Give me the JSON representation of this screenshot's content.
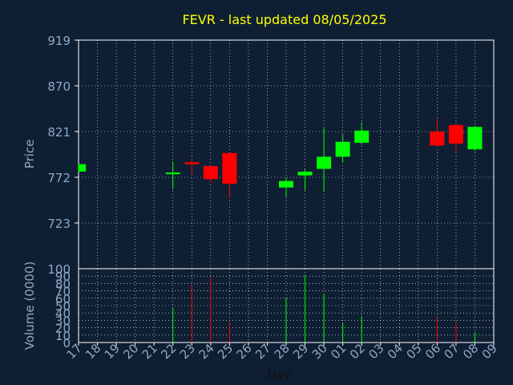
{
  "chart_data": {
    "type": "candlestick",
    "title": "FEVR - last updated 08/05/2025",
    "xlabel": "Day",
    "price_label": "Price",
    "volume_label": "Volume (0000)",
    "x_tick_labels": [
      "17",
      "18",
      "19",
      "20",
      "21",
      "22",
      "23",
      "24",
      "25",
      "26",
      "27",
      "28",
      "29",
      "30",
      "01",
      "02",
      "03",
      "04",
      "05",
      "06",
      "07",
      "08",
      "09"
    ],
    "price_ticks": [
      723,
      772,
      821,
      870,
      919
    ],
    "price_ylim": [
      674,
      919
    ],
    "volume_ticks": [
      0,
      10,
      20,
      30,
      40,
      50,
      60,
      70,
      80,
      90,
      100
    ],
    "volume_ylim": [
      0,
      100
    ],
    "grid": true,
    "colors": {
      "background": "#0f1f33",
      "title": "#ffff00",
      "axis_text": "#8fa8c8",
      "grid": "#ffffff",
      "up": "#00ff00",
      "down": "#ff0000"
    },
    "candles": [
      {
        "day": "17",
        "open": 778,
        "high": 786,
        "low": 778,
        "close": 786,
        "volume": 0
      },
      {
        "day": "22",
        "open": 776,
        "high": 789,
        "low": 759,
        "close": 777,
        "volume": 48
      },
      {
        "day": "23",
        "open": 788,
        "high": 792,
        "low": 776,
        "close": 786,
        "volume": 78
      },
      {
        "day": "24",
        "open": 784,
        "high": 784,
        "low": 766,
        "close": 770,
        "volume": 88
      },
      {
        "day": "25",
        "open": 798,
        "high": 798,
        "low": 749,
        "close": 765,
        "volume": 28
      },
      {
        "day": "28",
        "open": 761,
        "high": 772,
        "low": 751,
        "close": 768,
        "volume": 60
      },
      {
        "day": "29",
        "open": 774,
        "high": 781,
        "low": 758,
        "close": 778,
        "volume": 92
      },
      {
        "day": "30",
        "open": 781,
        "high": 825,
        "low": 757,
        "close": 794,
        "volume": 66
      },
      {
        "day": "01",
        "open": 794,
        "high": 818,
        "low": 788,
        "close": 810,
        "volume": 27
      },
      {
        "day": "02",
        "open": 809,
        "high": 831,
        "low": 807,
        "close": 822,
        "volume": 36
      },
      {
        "day": "06",
        "open": 821,
        "high": 835,
        "low": 805,
        "close": 806,
        "volume": 34
      },
      {
        "day": "07",
        "open": 828,
        "high": 828,
        "low": 799,
        "close": 808,
        "volume": 28
      },
      {
        "day": "08",
        "open": 802,
        "high": 827,
        "low": 800,
        "close": 826,
        "volume": 14
      }
    ]
  }
}
